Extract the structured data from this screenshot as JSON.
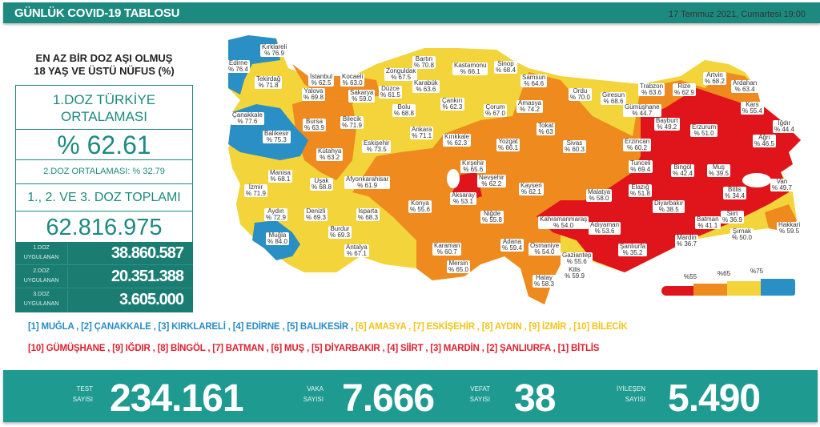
{
  "header": {
    "title": "GÜNLÜK COVID-19 TABLOSU",
    "date": "17 Temmuz 2021, Cumartesi 19:00"
  },
  "left": {
    "title_line1": "EN AZ BİR DOZ AŞI OLMUŞ",
    "title_line2": "18 YAŞ VE ÜSTÜ NÜFUS (%)",
    "avg_label_line1": "1.DOZ TÜRKİYE",
    "avg_label_line2": "ORTALAMASI",
    "avg_value": "% 62.61",
    "dose2_avg": "2.DOZ ORTALAMASI: % 32.79",
    "total_label": "1., 2. VE 3. DOZ TOPLAMI",
    "total_value": "62.816.975",
    "doses": [
      {
        "label1": "1.DOZ",
        "label2": "UYGULANAN",
        "value": "38.860.587"
      },
      {
        "label1": "2.DOZ",
        "label2": "UYGULANAN",
        "value": "20.351.388"
      },
      {
        "label1": "3.DOZ",
        "label2": "UYGULANAN",
        "value": "3.605.000"
      }
    ]
  },
  "map": {
    "colors": {
      "below55": "#e0141b",
      "55to65": "#ee8a1e",
      "65to75": "#f3d43a",
      "above75": "#2a8fc4"
    },
    "legend": [
      "%55",
      "%65",
      "%75"
    ],
    "provinces": [
      {
        "name": "Kırklareli",
        "value": "% 76.9"
      },
      {
        "name": "Edirne",
        "value": "% 76.4"
      },
      {
        "name": "Tekirdağ",
        "value": "% 71.8"
      },
      {
        "name": "İstanbul",
        "value": "% 62.5"
      },
      {
        "name": "Kocaeli",
        "value": "% 63.0"
      },
      {
        "name": "Yalova",
        "value": "% 69.8"
      },
      {
        "name": "Sakarya",
        "value": "% 59.0"
      },
      {
        "name": "Zonguldak",
        "value": "% 67.5"
      },
      {
        "name": "Bartın",
        "value": "% 70.8"
      },
      {
        "name": "Kastamonu",
        "value": "% 66.1"
      },
      {
        "name": "Sinop",
        "value": "% 68.4"
      },
      {
        "name": "Samsun",
        "value": "% 64.6"
      },
      {
        "name": "Karabük",
        "value": "% 63.6"
      },
      {
        "name": "Düzce",
        "value": "% 61.5"
      },
      {
        "name": "Bolu",
        "value": "% 68.8"
      },
      {
        "name": "Çankırı",
        "value": "% 62.3"
      },
      {
        "name": "Çorum",
        "value": "% 67.0"
      },
      {
        "name": "Amasya",
        "value": "% 74.2"
      },
      {
        "name": "Ordu",
        "value": "% 70.0"
      },
      {
        "name": "Giresun",
        "value": "% 68.6"
      },
      {
        "name": "Trabzon",
        "value": "% 63.6"
      },
      {
        "name": "Rize",
        "value": "% 62.9"
      },
      {
        "name": "Artvin",
        "value": "% 68.2"
      },
      {
        "name": "Ardahan",
        "value": "% 63.4"
      },
      {
        "name": "Kars",
        "value": "% 55.4"
      },
      {
        "name": "Gümüşhane",
        "value": "% 44.7"
      },
      {
        "name": "Bayburt",
        "value": "% 49.2"
      },
      {
        "name": "Erzurum",
        "value": "% 51.0"
      },
      {
        "name": "Iğdır",
        "value": "% 44.4"
      },
      {
        "name": "Ağrı",
        "value": "% 46.5"
      },
      {
        "name": "Erzincan",
        "value": "% 60.2"
      },
      {
        "name": "Tunceli",
        "value": "% 69.4"
      },
      {
        "name": "Bingöl",
        "value": "% 42.4"
      },
      {
        "name": "Muş",
        "value": "% 39.5"
      },
      {
        "name": "Van",
        "value": "% 49.7"
      },
      {
        "name": "Bitlis",
        "value": "% 34.4"
      },
      {
        "name": "Elazığ",
        "value": "% 51.8"
      },
      {
        "name": "Malatya",
        "value": "% 58.0"
      },
      {
        "name": "Diyarbakır",
        "value": "% 38.5"
      },
      {
        "name": "Siirt",
        "value": "% 36.9"
      },
      {
        "name": "Batman",
        "value": "% 41.1"
      },
      {
        "name": "Hakkari",
        "value": "% 59.5"
      },
      {
        "name": "Şırnak",
        "value": "% 50.0"
      },
      {
        "name": "Mardin",
        "value": "% 36.7"
      },
      {
        "name": "Şanlıurfa",
        "value": "% 35.2"
      },
      {
        "name": "Adıyaman",
        "value": "% 53.6"
      },
      {
        "name": "Kahramanmaraş",
        "value": "% 54.0"
      },
      {
        "name": "Osmaniye",
        "value": "% 54.0"
      },
      {
        "name": "Gaziantep",
        "value": "% 55.6"
      },
      {
        "name": "Kilis",
        "value": "% 59.9"
      },
      {
        "name": "Hatay",
        "value": "% 58.3"
      },
      {
        "name": "Adana",
        "value": "% 59.4"
      },
      {
        "name": "Kayseri",
        "value": "% 62.1"
      },
      {
        "name": "Niğde",
        "value": "% 55.8"
      },
      {
        "name": "Nevşehir",
        "value": "% 62.2"
      },
      {
        "name": "Aksaray",
        "value": "% 53.1"
      },
      {
        "name": "Kırşehir",
        "value": "% 65.6"
      },
      {
        "name": "Yozgat",
        "value": "% 66.1"
      },
      {
        "name": "Sivas",
        "value": "% 60.3"
      },
      {
        "name": "Tokat",
        "value": "% 63"
      },
      {
        "name": "Kırıkkale",
        "value": "% 62.3"
      },
      {
        "name": "Ankara",
        "value": "% 71.1"
      },
      {
        "name": "Eskişehir",
        "value": "% 73.5"
      },
      {
        "name": "Bilecik",
        "value": "% 71.9"
      },
      {
        "name": "Bursa",
        "value": "% 63.9"
      },
      {
        "name": "Balıkesir",
        "value": "% 75.3"
      },
      {
        "name": "Çanakkale",
        "value": "% 77.6"
      },
      {
        "name": "Kütahya",
        "value": "% 63.2"
      },
      {
        "name": "Manisa",
        "value": "% 68.1"
      },
      {
        "name": "İzmir",
        "value": "% 71.9"
      },
      {
        "name": "Uşak",
        "value": "% 68.8"
      },
      {
        "name": "Afyonkarahisar",
        "value": "% 61.9"
      },
      {
        "name": "Aydın",
        "value": "% 72.9"
      },
      {
        "name": "Denizli",
        "value": "% 69.3"
      },
      {
        "name": "Isparta",
        "value": "% 68.3"
      },
      {
        "name": "Burdur",
        "value": "% 69.3"
      },
      {
        "name": "Muğla",
        "value": "% 84.0"
      },
      {
        "name": "Antalya",
        "value": "% 67.1"
      },
      {
        "name": "Konya",
        "value": "% 55.6"
      },
      {
        "name": "Karaman",
        "value": "% 60.7"
      },
      {
        "name": "Mersin",
        "value": "% 65.0"
      }
    ]
  },
  "rankings": {
    "top": [
      "[1] MUĞLA , [2] ÇANAKKALE , [3] KIRKLARELİ , [4] EDİRNE , [5] BALIKESİR ,",
      "[6] AMASYA , [7] ESKİŞEHİR , [8] AYDIN , [9] İZMİR , [10] BİLECİK"
    ],
    "bottom": "[10] GÜMÜŞHANE , [9] IĞDIR , [8] BİNGÖL , [7] BATMAN , [6] MUŞ , [5] DİYARBAKIR , [4] SİİRT , [3] MARDİN , [2] ŞANLIURFA , [1] BİTLİS"
  },
  "stats": [
    {
      "label1": "TEST",
      "label2": "SAYISI",
      "value": "234.161"
    },
    {
      "label1": "VAKA",
      "label2": "SAYISI",
      "value": "7.666"
    },
    {
      "label1": "VEFAT",
      "label2": "SAYISI",
      "value": "38"
    },
    {
      "label1": "İYİLEŞEN",
      "label2": "SAYISI",
      "value": "5.490"
    }
  ]
}
